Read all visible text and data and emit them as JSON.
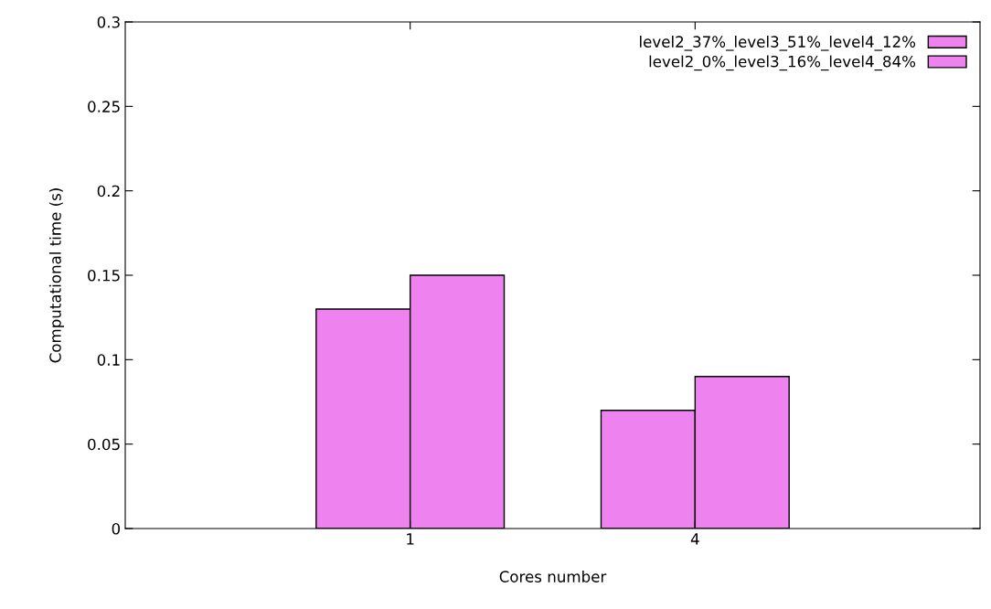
{
  "chart_data": {
    "type": "bar",
    "xlabel": "Cores number",
    "ylabel": "Computational time (s)",
    "categories": [
      "1",
      "4"
    ],
    "series": [
      {
        "name": "level2_37%_level3_51%_level4_12%",
        "color": "#ee82ee",
        "values": [
          0.13,
          0.07
        ]
      },
      {
        "name": "level2_0%_level3_16%_level4_84%",
        "color": "#ee82ee",
        "values": [
          0.15,
          0.09
        ]
      }
    ],
    "ylim": [
      0,
      0.3
    ],
    "yticks": [
      0,
      0.05,
      0.1,
      0.15,
      0.2,
      0.25,
      0.3
    ],
    "grid": false,
    "legend": "top right"
  }
}
